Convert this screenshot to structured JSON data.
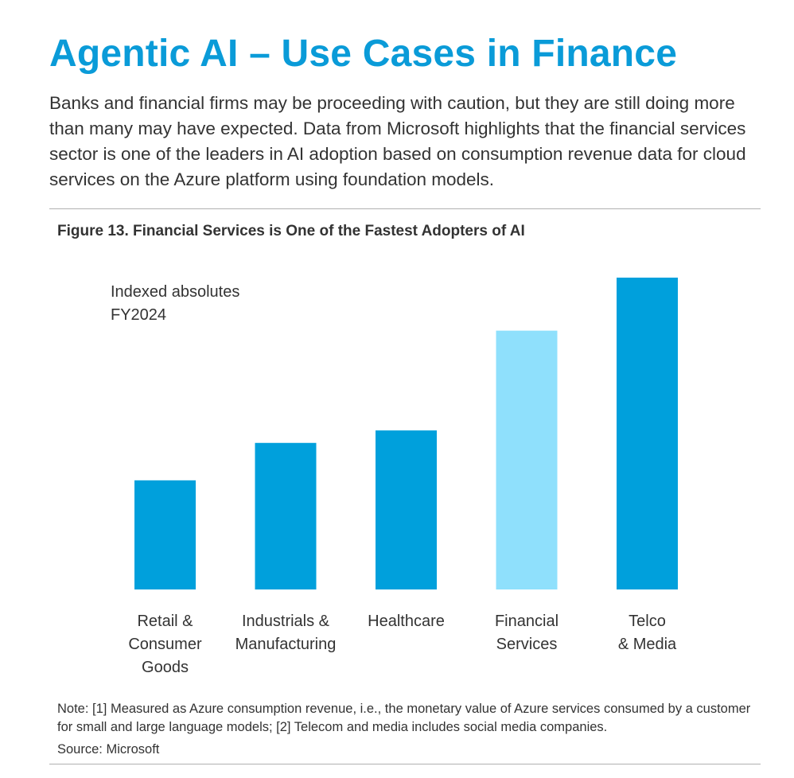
{
  "page": {
    "title": "Agentic AI – Use Cases in Finance",
    "intro": "Banks and financial firms may be proceeding with caution, but they are still doing more than many may have expected. Data from Microsoft highlights that the financial services sector is one of the leaders in AI adoption based on consumption revenue data for cloud services on the Azure platform using foundation models.",
    "figure_title": "Figure 13. Financial Services is One of the Fastest Adopters of AI",
    "note": "Note: [1] Measured as Azure consumption revenue, i.e., the monetary value of Azure services consumed by a customer for small and large language models; [2] Telecom and media includes social media companies.",
    "source": "Source: Microsoft"
  },
  "chart_data": {
    "type": "bar",
    "annotation_lines": [
      "Indexed absolutes",
      "FY2024"
    ],
    "categories": [
      [
        "Retail &",
        "Consumer",
        "Goods"
      ],
      [
        "Industrials &",
        "Manufacturing"
      ],
      [
        "Healthcare"
      ],
      [
        "Financial",
        "Services"
      ],
      [
        "Telco",
        "& Media"
      ]
    ],
    "values": [
      35,
      47,
      51,
      83,
      100
    ],
    "ylim": [
      0,
      100
    ],
    "colors": [
      "#00a0dc",
      "#00a0dc",
      "#00a0dc",
      "#8fe0fc",
      "#00a0dc"
    ],
    "xlabel": "",
    "ylabel": "",
    "grid": false,
    "legend": "none"
  }
}
